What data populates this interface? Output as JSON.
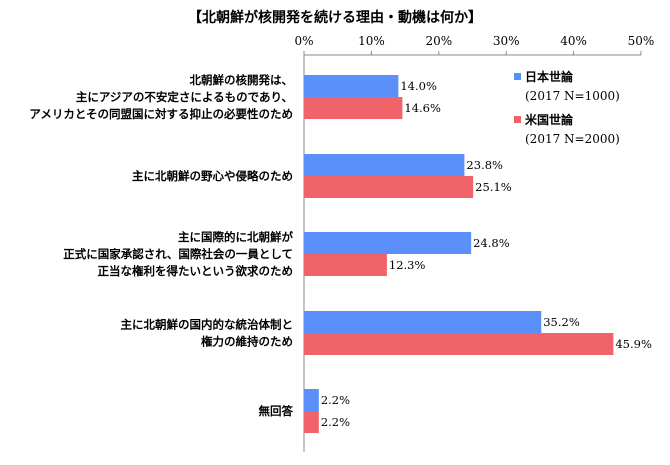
{
  "chart_data": {
    "type": "bar",
    "orientation": "horizontal",
    "title": "【北朝鮮が核開発を続ける理由・動機は何か】",
    "x_tick_labels": [
      "0%",
      "10%",
      "20%",
      "30%",
      "40%",
      "50%"
    ],
    "xlim": [
      0,
      50
    ],
    "x_axis_position": "top",
    "categories": [
      [
        "北朝鮮の核開発は、",
        "主にアジアの不安定さによるものであり、",
        "アメリカとその同盟国に対する抑止の必要性のため"
      ],
      [
        "主に北朝鮮の野心や侵略のため"
      ],
      [
        "主に国際的に北朝鮮が",
        "正式に国家承認され、国際社会の一員として",
        "正当な権利を得たいという欲求のため"
      ],
      [
        "主に北朝鮮の国内的な統治体制と",
        "権力の維持のため"
      ],
      [
        "無回答"
      ]
    ],
    "series": [
      {
        "name": "日本世論",
        "sub": "(2017 N=1000)",
        "color": "#5b8ff9",
        "values": [
          14.0,
          23.8,
          24.8,
          35.2,
          2.2
        ]
      },
      {
        "name": "米国世論",
        "sub": "(2017 N=2000)",
        "color": "#f0636a",
        "values": [
          14.6,
          25.1,
          12.3,
          45.9,
          2.2
        ]
      }
    ],
    "legend_position": "upper-right inside plot",
    "grid": false
  }
}
